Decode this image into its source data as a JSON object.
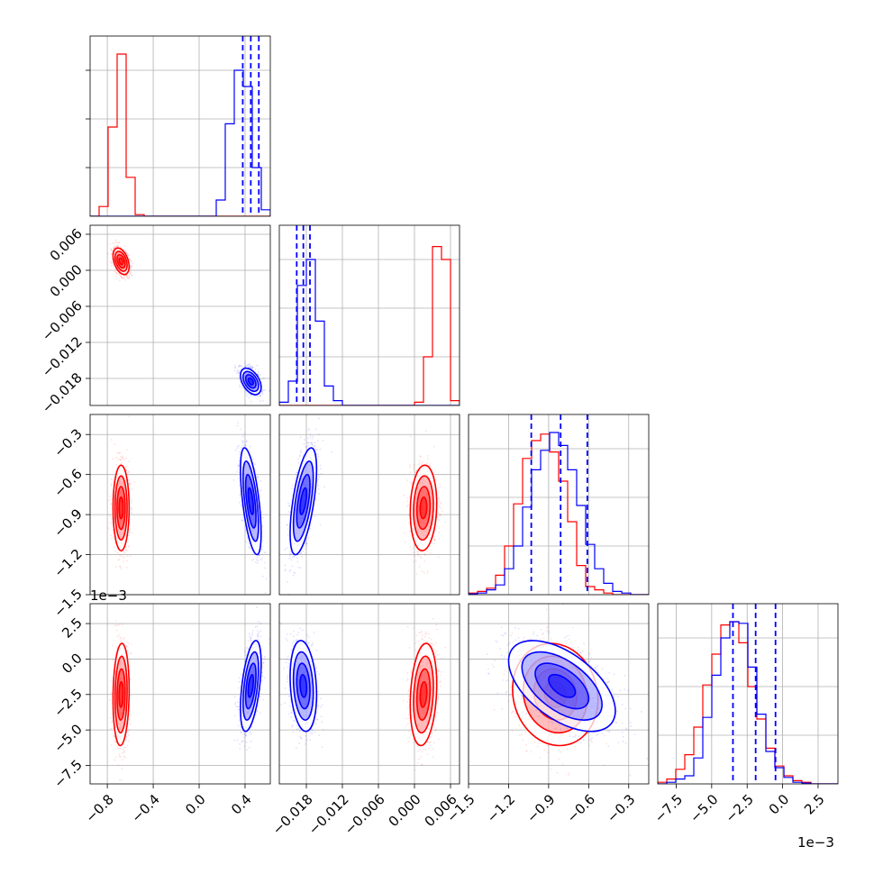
{
  "chart_data": {
    "type": "corner",
    "parameters": 4,
    "grid": true,
    "colors": {
      "series_a": "#ff0000",
      "series_b": "#0000ff"
    },
    "axes": [
      {
        "range": [
          -0.95,
          0.62
        ],
        "ticks": [
          -0.8,
          -0.4,
          0.0,
          0.4
        ],
        "tick_labels": [
          "−0.8",
          "−0.4",
          "0.0",
          "0.4"
        ]
      },
      {
        "range": [
          -0.0225,
          0.0075
        ],
        "ticks": [
          -0.018,
          -0.012,
          -0.006,
          0.0,
          0.006
        ],
        "tick_labels": [
          "−0.018",
          "−0.012",
          "−0.006",
          "0.000",
          "0.006"
        ]
      },
      {
        "range": [
          -1.5,
          -0.15
        ],
        "ticks": [
          -1.5,
          -1.2,
          -0.9,
          -0.6,
          -0.3
        ],
        "tick_labels": [
          "−1.5",
          "−1.2",
          "−0.9",
          "−0.6",
          "−0.3"
        ]
      },
      {
        "range": [
          -0.0088,
          0.0039
        ],
        "ticks": [
          -0.0075,
          -0.005,
          -0.0025,
          0.0,
          0.0025
        ],
        "tick_labels": [
          "−7.5",
          "−5.0",
          "−2.5",
          "0.0",
          "2.5"
        ],
        "offset_text": "1e−3"
      }
    ],
    "series": [
      {
        "color": "#ff0000",
        "means": [
          -0.68,
          0.0015,
          -0.85,
          -0.0025
        ],
        "sigmas": [
          0.035,
          0.0011,
          0.16,
          0.0018
        ],
        "quantiles": []
      },
      {
        "color": "#0000ff",
        "means": [
          0.45,
          -0.0185,
          -0.8,
          -0.0019
        ],
        "sigmas": [
          0.045,
          0.0011,
          0.2,
          0.0016
        ],
        "quantiles": [
          [
            0.38,
            0.45,
            0.52
          ],
          [
            -0.0196,
            -0.0185,
            -0.0174
          ],
          [
            -1.03,
            -0.81,
            -0.61
          ],
          [
            -0.0035,
            -0.0019,
            -0.0005
          ]
        ]
      }
    ],
    "correlations": {
      "series_a": {
        "1,0": -0.4,
        "2,0": 0.0,
        "2,1": 0.1,
        "3,0": 0.1,
        "3,1": 0.2,
        "3,2": -0.1
      },
      "series_b": {
        "1,0": -0.45,
        "2,0": -0.6,
        "2,1": 0.6,
        "3,0": 0.5,
        "3,1": -0.2,
        "3,2": -0.55
      }
    },
    "histograms": {
      "series_a": {
        "0": [
          0,
          0.06,
          0.55,
          1.0,
          0.24,
          0.01,
          0,
          0,
          0,
          0,
          0,
          0,
          0,
          0,
          0,
          0,
          0,
          0,
          0,
          0
        ],
        "1": [
          0,
          0,
          0,
          0,
          0,
          0,
          0,
          0,
          0,
          0,
          0,
          0,
          0,
          0,
          0,
          0.02,
          0.3,
          0.98,
          0.9,
          0.03
        ],
        "2": [
          0.01,
          0.02,
          0.04,
          0.12,
          0.3,
          0.56,
          0.84,
          0.95,
          0.99,
          0.88,
          0.7,
          0.45,
          0.18,
          0.05,
          0.03,
          0.01,
          0,
          0,
          0,
          0
        ],
        "3": [
          0.01,
          0.03,
          0.09,
          0.18,
          0.35,
          0.61,
          0.8,
          0.98,
          1.0,
          0.87,
          0.6,
          0.4,
          0.22,
          0.11,
          0.05,
          0.02,
          0.01,
          0,
          0,
          0
        ]
      },
      "series_b": {
        "0": [
          0,
          0,
          0,
          0,
          0,
          0,
          0,
          0,
          0,
          0,
          0,
          0,
          0,
          0,
          0.1,
          0.57,
          0.9,
          0.8,
          0.3,
          0.04
        ],
        "1": [
          0.02,
          0.15,
          0.74,
          0.9,
          0.52,
          0.12,
          0.03,
          0,
          0,
          0,
          0,
          0,
          0,
          0,
          0,
          0,
          0,
          0,
          0,
          0
        ],
        "2": [
          0.005,
          0.01,
          0.03,
          0.06,
          0.16,
          0.3,
          0.54,
          0.77,
          0.89,
          1.0,
          0.92,
          0.77,
          0.55,
          0.31,
          0.16,
          0.07,
          0.02,
          0.01,
          0,
          0
        ],
        "3": [
          0,
          0.01,
          0.03,
          0.05,
          0.16,
          0.41,
          0.67,
          0.9,
          1.0,
          0.99,
          0.72,
          0.43,
          0.2,
          0.1,
          0.04,
          0.01,
          0.005,
          0,
          0,
          0
        ]
      }
    }
  }
}
